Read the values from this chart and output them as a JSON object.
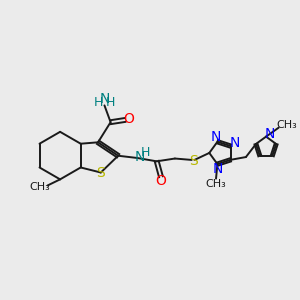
{
  "bg_color": "#ebebeb",
  "bond_color": "#1a1a1a",
  "figsize": [
    3.0,
    3.0
  ],
  "dpi": 100,
  "xlim": [
    0,
    10.5
  ],
  "ylim": [
    1.5,
    9.0
  ]
}
